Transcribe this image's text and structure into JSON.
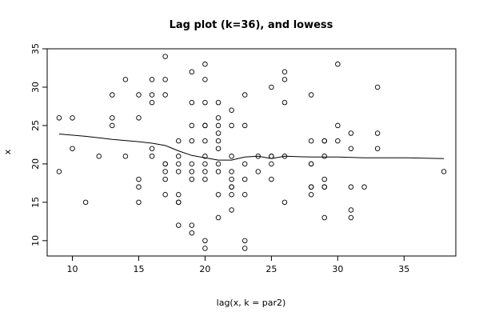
{
  "chart_data": {
    "type": "scatter",
    "title": "Lag plot (k=36), and lowess",
    "xlabel": "lag(x, k = par2)",
    "ylabel": "x",
    "xlim": [
      8.1,
      38.9
    ],
    "ylim": [
      8.0,
      35.0
    ],
    "xticks": [
      10,
      15,
      20,
      25,
      30,
      35
    ],
    "yticks": [
      10,
      15,
      20,
      25,
      30,
      35
    ],
    "points": [
      {
        "x": 9,
        "y": 26
      },
      {
        "x": 9,
        "y": 19
      },
      {
        "x": 10,
        "y": 26
      },
      {
        "x": 10,
        "y": 22
      },
      {
        "x": 11,
        "y": 15
      },
      {
        "x": 12,
        "y": 21
      },
      {
        "x": 13,
        "y": 29
      },
      {
        "x": 13,
        "y": 26
      },
      {
        "x": 13,
        "y": 25
      },
      {
        "x": 14,
        "y": 31
      },
      {
        "x": 14,
        "y": 21
      },
      {
        "x": 15,
        "y": 29
      },
      {
        "x": 15,
        "y": 26
      },
      {
        "x": 15,
        "y": 18
      },
      {
        "x": 15,
        "y": 17
      },
      {
        "x": 15,
        "y": 15
      },
      {
        "x": 16,
        "y": 31
      },
      {
        "x": 16,
        "y": 29
      },
      {
        "x": 16,
        "y": 28
      },
      {
        "x": 16,
        "y": 22
      },
      {
        "x": 16,
        "y": 21
      },
      {
        "x": 17,
        "y": 34
      },
      {
        "x": 17,
        "y": 31
      },
      {
        "x": 17,
        "y": 29
      },
      {
        "x": 17,
        "y": 20
      },
      {
        "x": 17,
        "y": 20
      },
      {
        "x": 17,
        "y": 19
      },
      {
        "x": 17,
        "y": 18
      },
      {
        "x": 17,
        "y": 16
      },
      {
        "x": 18,
        "y": 23
      },
      {
        "x": 18,
        "y": 21
      },
      {
        "x": 18,
        "y": 20
      },
      {
        "x": 18,
        "y": 19
      },
      {
        "x": 18,
        "y": 16
      },
      {
        "x": 18,
        "y": 15
      },
      {
        "x": 18,
        "y": 15
      },
      {
        "x": 18,
        "y": 12
      },
      {
        "x": 19,
        "y": 32
      },
      {
        "x": 19,
        "y": 28
      },
      {
        "x": 19,
        "y": 25
      },
      {
        "x": 19,
        "y": 23
      },
      {
        "x": 19,
        "y": 20
      },
      {
        "x": 19,
        "y": 19
      },
      {
        "x": 19,
        "y": 18
      },
      {
        "x": 19,
        "y": 12
      },
      {
        "x": 19,
        "y": 11
      },
      {
        "x": 20,
        "y": 33
      },
      {
        "x": 20,
        "y": 31
      },
      {
        "x": 20,
        "y": 28
      },
      {
        "x": 20,
        "y": 25
      },
      {
        "x": 20,
        "y": 25
      },
      {
        "x": 20,
        "y": 23
      },
      {
        "x": 20,
        "y": 21
      },
      {
        "x": 20,
        "y": 20
      },
      {
        "x": 20,
        "y": 19
      },
      {
        "x": 20,
        "y": 18
      },
      {
        "x": 20,
        "y": 10
      },
      {
        "x": 20,
        "y": 9
      },
      {
        "x": 21,
        "y": 28
      },
      {
        "x": 21,
        "y": 26
      },
      {
        "x": 21,
        "y": 25
      },
      {
        "x": 21,
        "y": 24
      },
      {
        "x": 21,
        "y": 23
      },
      {
        "x": 21,
        "y": 22
      },
      {
        "x": 21,
        "y": 20
      },
      {
        "x": 21,
        "y": 19
      },
      {
        "x": 21,
        "y": 16
      },
      {
        "x": 21,
        "y": 13
      },
      {
        "x": 22,
        "y": 27
      },
      {
        "x": 22,
        "y": 25
      },
      {
        "x": 22,
        "y": 21
      },
      {
        "x": 22,
        "y": 19
      },
      {
        "x": 22,
        "y": 18
      },
      {
        "x": 22,
        "y": 17
      },
      {
        "x": 22,
        "y": 17
      },
      {
        "x": 22,
        "y": 16
      },
      {
        "x": 22,
        "y": 14
      },
      {
        "x": 23,
        "y": 29
      },
      {
        "x": 23,
        "y": 25
      },
      {
        "x": 23,
        "y": 20
      },
      {
        "x": 23,
        "y": 18
      },
      {
        "x": 23,
        "y": 16
      },
      {
        "x": 23,
        "y": 10
      },
      {
        "x": 23,
        "y": 9
      },
      {
        "x": 24,
        "y": 21
      },
      {
        "x": 24,
        "y": 19
      },
      {
        "x": 25,
        "y": 30
      },
      {
        "x": 25,
        "y": 21
      },
      {
        "x": 25,
        "y": 21
      },
      {
        "x": 25,
        "y": 20
      },
      {
        "x": 25,
        "y": 18
      },
      {
        "x": 26,
        "y": 32
      },
      {
        "x": 26,
        "y": 31
      },
      {
        "x": 26,
        "y": 28
      },
      {
        "x": 26,
        "y": 21
      },
      {
        "x": 26,
        "y": 15
      },
      {
        "x": 28,
        "y": 29
      },
      {
        "x": 28,
        "y": 23
      },
      {
        "x": 28,
        "y": 20
      },
      {
        "x": 28,
        "y": 20
      },
      {
        "x": 28,
        "y": 17
      },
      {
        "x": 28,
        "y": 17
      },
      {
        "x": 28,
        "y": 16
      },
      {
        "x": 29,
        "y": 23
      },
      {
        "x": 29,
        "y": 23
      },
      {
        "x": 29,
        "y": 21
      },
      {
        "x": 29,
        "y": 18
      },
      {
        "x": 29,
        "y": 17
      },
      {
        "x": 29,
        "y": 17
      },
      {
        "x": 29,
        "y": 13
      },
      {
        "x": 30,
        "y": 33
      },
      {
        "x": 30,
        "y": 25
      },
      {
        "x": 30,
        "y": 23
      },
      {
        "x": 31,
        "y": 24
      },
      {
        "x": 31,
        "y": 22
      },
      {
        "x": 31,
        "y": 17
      },
      {
        "x": 31,
        "y": 14
      },
      {
        "x": 31,
        "y": 13
      },
      {
        "x": 32,
        "y": 17
      },
      {
        "x": 33,
        "y": 30
      },
      {
        "x": 33,
        "y": 24
      },
      {
        "x": 33,
        "y": 22
      },
      {
        "x": 38,
        "y": 19
      }
    ],
    "lowess": [
      {
        "x": 9,
        "y": 23.9
      },
      {
        "x": 11,
        "y": 23.6
      },
      {
        "x": 13,
        "y": 23.2
      },
      {
        "x": 15,
        "y": 22.9
      },
      {
        "x": 16,
        "y": 22.7
      },
      {
        "x": 17,
        "y": 22.4
      },
      {
        "x": 18,
        "y": 21.7
      },
      {
        "x": 19,
        "y": 21.1
      },
      {
        "x": 20,
        "y": 20.8
      },
      {
        "x": 21,
        "y": 20.5
      },
      {
        "x": 22,
        "y": 20.5
      },
      {
        "x": 23,
        "y": 20.9
      },
      {
        "x": 24,
        "y": 21.0
      },
      {
        "x": 25,
        "y": 20.7
      },
      {
        "x": 26,
        "y": 21.0
      },
      {
        "x": 28,
        "y": 20.9
      },
      {
        "x": 30,
        "y": 20.9
      },
      {
        "x": 32,
        "y": 20.8
      },
      {
        "x": 35,
        "y": 20.8
      },
      {
        "x": 38,
        "y": 20.7
      }
    ],
    "grid": false,
    "legend": "none"
  }
}
